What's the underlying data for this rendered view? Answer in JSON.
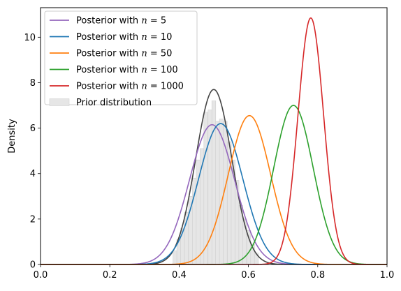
{
  "chart_data": {
    "type": "line",
    "title": "",
    "xlabel": "",
    "ylabel": "Density",
    "xlim": [
      0.0,
      1.0
    ],
    "ylim": [
      0,
      11.3
    ],
    "xticks": [
      0.0,
      0.2,
      0.4,
      0.6,
      0.8,
      1.0
    ],
    "xtick_labels": [
      "0.0",
      "0.2",
      "0.4",
      "0.6",
      "0.8",
      "1.0"
    ],
    "yticks": [
      0,
      2,
      4,
      6,
      8,
      10
    ],
    "ytick_labels": [
      "0",
      "2",
      "4",
      "6",
      "8",
      "10"
    ],
    "grid": false,
    "legend_position": "top-left",
    "series": [
      {
        "name": "Posterior with n = 5",
        "legend_prefix": "Posterior with ",
        "legend_math": "n = 5",
        "color": "#9467bd",
        "peak_x": 0.495,
        "peak_y": 6.15,
        "sd": 0.065
      },
      {
        "name": "Posterior with n = 10",
        "legend_prefix": "Posterior with ",
        "legend_math": "n = 10",
        "color": "#1f77b4",
        "peak_x": 0.52,
        "peak_y": 6.2,
        "sd": 0.064
      },
      {
        "name": "Posterior with n = 50",
        "legend_prefix": "Posterior with ",
        "legend_math": "n = 50",
        "color": "#ff7f0e",
        "peak_x": 0.603,
        "peak_y": 6.55,
        "sd": 0.061
      },
      {
        "name": "Posterior with n = 100",
        "legend_prefix": "Posterior with ",
        "legend_math": "n = 100",
        "color": "#2ca02c",
        "peak_x": 0.73,
        "peak_y": 7.0,
        "sd": 0.057
      },
      {
        "name": "Posterior with n = 1000",
        "legend_prefix": "Posterior with ",
        "legend_math": "n = 1000",
        "color": "#d62728",
        "peak_x": 0.78,
        "peak_y": 10.85,
        "sd": 0.037
      }
    ],
    "prior_kde": {
      "color": "#444444",
      "peak_x": 0.5,
      "peak_y": 7.7,
      "sd": 0.052
    },
    "prior_histogram": {
      "name": "Prior distribution",
      "color": "#e6e6e6",
      "edge_color": "#d0d0d0",
      "bin_width": 0.0112,
      "bins": [
        {
          "x": 0.388,
          "y": 0.6
        },
        {
          "x": 0.399,
          "y": 1.1
        },
        {
          "x": 0.41,
          "y": 1.6
        },
        {
          "x": 0.421,
          "y": 2.3
        },
        {
          "x": 0.433,
          "y": 3.0
        },
        {
          "x": 0.444,
          "y": 3.8
        },
        {
          "x": 0.455,
          "y": 4.6
        },
        {
          "x": 0.466,
          "y": 5.1
        },
        {
          "x": 0.477,
          "y": 6.7
        },
        {
          "x": 0.489,
          "y": 6.8
        },
        {
          "x": 0.5,
          "y": 7.2
        },
        {
          "x": 0.511,
          "y": 6.3
        },
        {
          "x": 0.522,
          "y": 6.4
        },
        {
          "x": 0.533,
          "y": 6.3
        },
        {
          "x": 0.545,
          "y": 5.4
        },
        {
          "x": 0.556,
          "y": 4.6
        },
        {
          "x": 0.567,
          "y": 3.7
        },
        {
          "x": 0.578,
          "y": 2.6
        },
        {
          "x": 0.589,
          "y": 2.0
        },
        {
          "x": 0.601,
          "y": 1.5
        },
        {
          "x": 0.612,
          "y": 0.9
        },
        {
          "x": 0.623,
          "y": 0.5
        }
      ]
    }
  }
}
